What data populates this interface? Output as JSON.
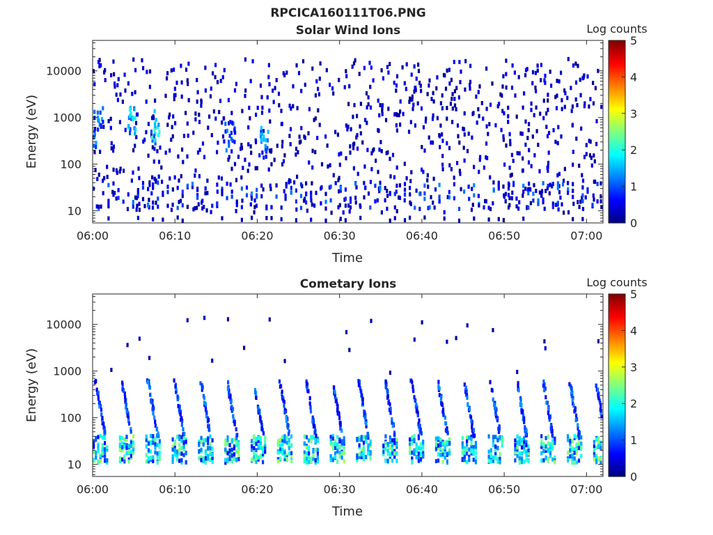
{
  "figure": {
    "filename": "RPCICA160111T06.PNG"
  },
  "chart_data": [
    {
      "type": "heatmap",
      "title": "Solar Wind Ions",
      "xlabel": "Time",
      "ylabel": "Energy (eV)",
      "xlim": [
        "06:00",
        "07:02"
      ],
      "xticks": [
        "06:00",
        "06:10",
        "06:20",
        "06:30",
        "06:40",
        "06:50",
        "07:00"
      ],
      "yscale": "log",
      "ylim": [
        5.5,
        45000
      ],
      "yticks": [
        "10",
        "100",
        "1000",
        "10000"
      ],
      "colorbar": {
        "label": "Log counts",
        "range": [
          0,
          5
        ],
        "ticks": [
          "0",
          "1",
          "2",
          "3",
          "4",
          "5"
        ],
        "colormap": "jet"
      },
      "grid": false,
      "description_bands": {
        "background_counts_log": [
          0,
          0.6
        ],
        "low_energy_band_eV": [
          12,
          45
        ],
        "bursts": [
          {
            "time": "06:00",
            "energy_eV": [
              250,
              1800
            ],
            "log_counts": 1.3
          },
          {
            "time": "06:04",
            "energy_eV": [
              500,
              1800
            ],
            "log_counts": 1.6
          },
          {
            "time": "06:07",
            "energy_eV": [
              300,
              1600
            ],
            "log_counts": 2.0
          },
          {
            "time": "06:16",
            "energy_eV": [
              200,
              900
            ],
            "log_counts": 1.1
          },
          {
            "time": "06:20",
            "energy_eV": [
              150,
              700
            ],
            "log_counts": 1.4
          }
        ]
      }
    },
    {
      "type": "heatmap",
      "title": "Cometary Ions",
      "xlabel": "Time",
      "ylabel": "Energy (eV)",
      "xlim": [
        "06:00",
        "07:02"
      ],
      "xticks": [
        "06:00",
        "06:10",
        "06:20",
        "06:30",
        "06:40",
        "06:50",
        "07:00"
      ],
      "yscale": "log",
      "ylim": [
        5.5,
        45000
      ],
      "yticks": [
        "10",
        "100",
        "1000",
        "10000"
      ],
      "colorbar": {
        "label": "Log counts",
        "range": [
          0,
          5
        ],
        "ticks": [
          "0",
          "1",
          "2",
          "3",
          "4",
          "5"
        ],
        "colormap": "jet"
      },
      "grid": false,
      "description_bands": {
        "periodic_structure_period_min": 3.2,
        "core_energy_eV": [
          12,
          45
        ],
        "core_peak_log_counts": 2.8,
        "tail_energy_eV": [
          45,
          700
        ],
        "tail_log_counts": 1.0
      }
    }
  ]
}
